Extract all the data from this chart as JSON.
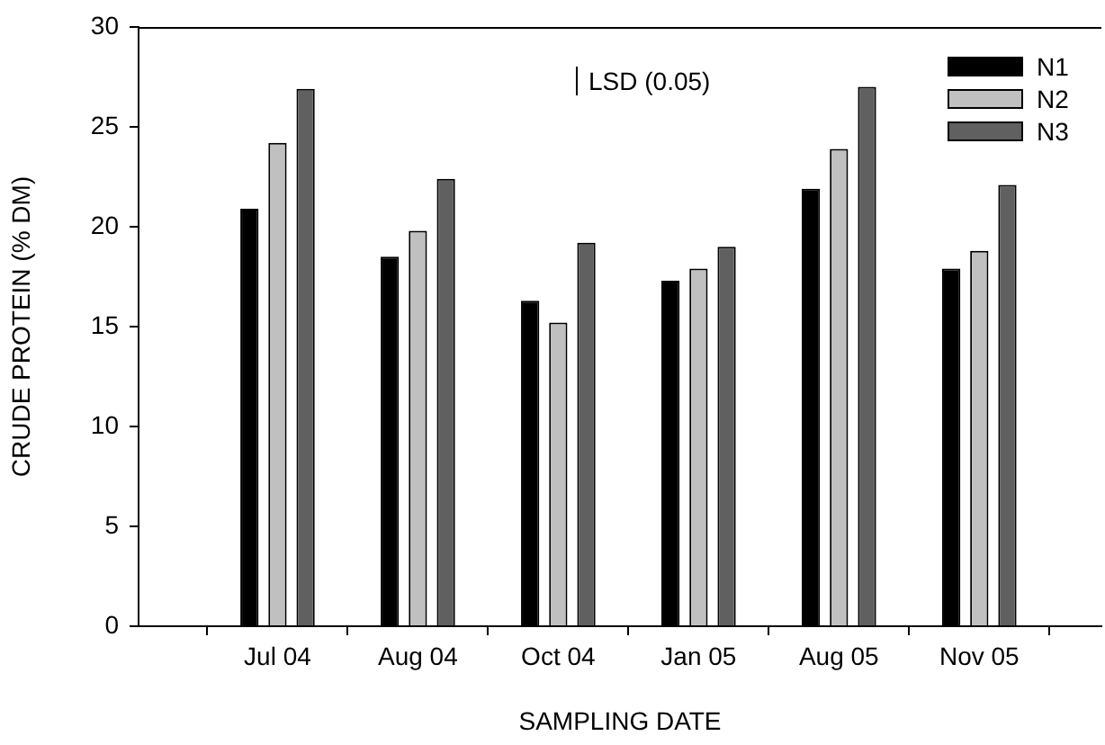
{
  "chart_data": {
    "type": "bar",
    "xlabel": "SAMPLING DATE",
    "ylabel": "CRUDE PROTEIN (% DM)",
    "categories": [
      "Jul 04",
      "Aug 04",
      "Oct 04",
      "Jan 05",
      "Aug 05",
      "Nov 05"
    ],
    "series": [
      {
        "name": "N1",
        "color": "#000000",
        "values": [
          20.9,
          18.5,
          16.3,
          17.3,
          21.9,
          17.9
        ]
      },
      {
        "name": "N2",
        "color": "#c0c0c0",
        "values": [
          24.2,
          19.8,
          15.2,
          17.9,
          23.9,
          18.8
        ]
      },
      {
        "name": "N3",
        "color": "#606060",
        "values": [
          26.9,
          22.4,
          19.2,
          19.0,
          27.0,
          22.1
        ]
      }
    ],
    "ylim": [
      0,
      30
    ],
    "yticks": [
      0,
      5,
      10,
      15,
      20,
      25,
      30
    ],
    "grid": false,
    "legend": "top right",
    "annotations": [
      "LSD (0.05)"
    ]
  }
}
